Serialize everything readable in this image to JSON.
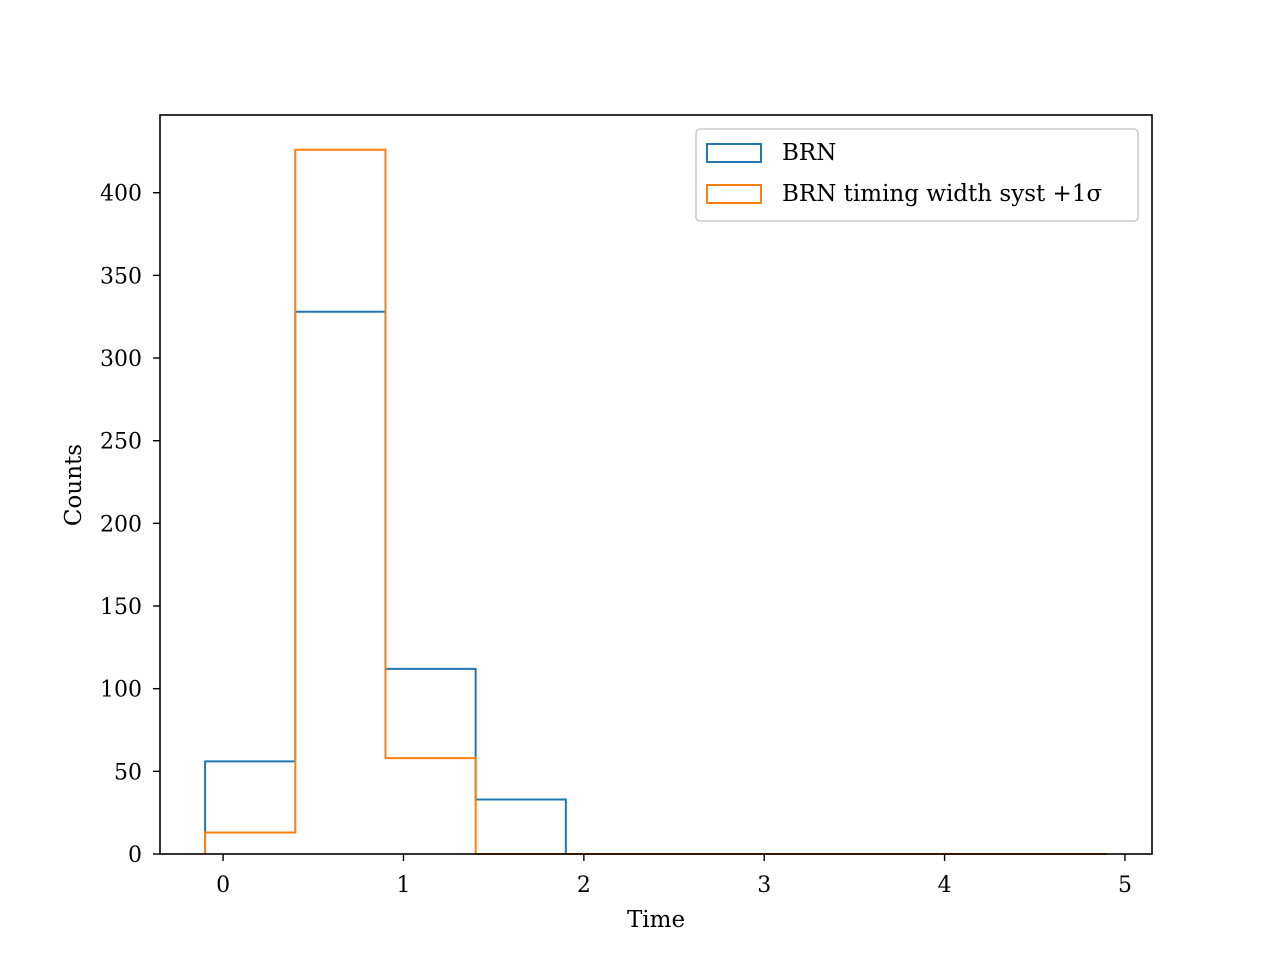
{
  "chart_data": {
    "type": "histogram",
    "title": "",
    "xlabel": "Time",
    "ylabel": "Counts",
    "xlim": [
      -0.35,
      5.15
    ],
    "ylim": [
      0,
      447
    ],
    "x_ticks": [
      0,
      1,
      2,
      3,
      4,
      5
    ],
    "y_ticks": [
      0,
      50,
      100,
      150,
      200,
      250,
      300,
      350,
      400
    ],
    "grid": false,
    "legend_position": "top-right",
    "bin_edges": [
      -0.1,
      0.4,
      0.9,
      1.4,
      1.9,
      2.4,
      2.9,
      3.4,
      3.9,
      4.4,
      4.9
    ],
    "series": [
      {
        "name": "BRN",
        "color": "#1f77b4",
        "values": [
          56,
          328,
          112,
          33,
          0,
          0,
          0,
          0,
          0,
          0
        ]
      },
      {
        "name": "BRN timing width syst +1σ",
        "color": "#ff7f0e",
        "values": [
          13,
          426,
          58,
          0,
          0,
          0,
          0,
          0,
          0,
          0
        ]
      }
    ]
  }
}
